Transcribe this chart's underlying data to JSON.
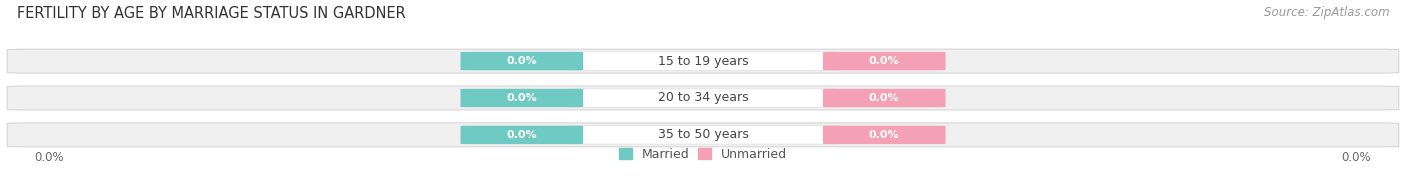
{
  "title": "FERTILITY BY AGE BY MARRIAGE STATUS IN GARDNER",
  "source": "Source: ZipAtlas.com",
  "categories": [
    "15 to 19 years",
    "20 to 34 years",
    "35 to 50 years"
  ],
  "married_values": [
    "0.0%",
    "0.0%",
    "0.0%"
  ],
  "unmarried_values": [
    "0.0%",
    "0.0%",
    "0.0%"
  ],
  "married_color": "#6ECAC3",
  "unmarried_color": "#F4A0B5",
  "bar_bg_color": "#f0f0f0",
  "bar_border_color": "#cccccc",
  "label_bg_color": "#ffffff",
  "title_fontsize": 10.5,
  "source_fontsize": 8.5,
  "cat_label_fontsize": 9,
  "badge_fontsize": 8,
  "axis_label_fontsize": 8.5,
  "legend_fontsize": 9,
  "left_pct": "0.0%",
  "right_pct": "0.0%",
  "background_color": "#ffffff"
}
